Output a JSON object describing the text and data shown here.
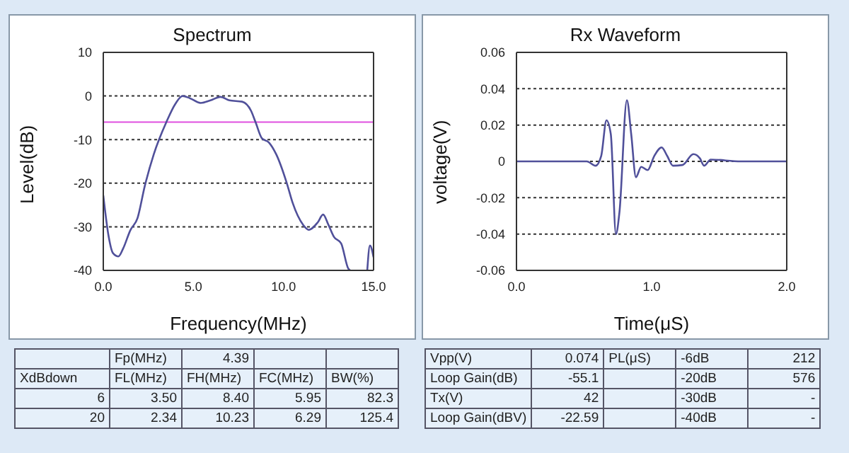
{
  "chart_data": [
    {
      "type": "line",
      "title": "Spectrum",
      "xlabel": "Frequency(MHz)",
      "ylabel": "Level(dB)",
      "grid": "y",
      "marker": "none",
      "line_style": "solid",
      "xlim": [
        0,
        15
      ],
      "xticks": [
        {
          "value": 0,
          "label": "0.0"
        },
        {
          "value": 5,
          "label": "5.0"
        },
        {
          "value": 10,
          "label": "10.0"
        },
        {
          "value": 15,
          "label": "15.0"
        }
      ],
      "ylim": [
        -40,
        10
      ],
      "yticks": [
        -40,
        -30,
        -20,
        -10,
        0,
        10
      ],
      "ref_lines": [
        {
          "axis": "y",
          "value": -6,
          "color": "#e050e0"
        }
      ],
      "series": [
        {
          "color": "#50509a",
          "x": [
            0,
            0.3,
            0.53,
            0.84,
            1.1,
            1.5,
            1.9,
            2.3,
            2.8,
            3.5,
            4.0,
            4.4,
            4.8,
            5.4,
            5.95,
            6.5,
            7.0,
            7.7,
            8.2,
            8.45,
            8.8,
            9.2,
            9.6,
            10.2,
            10.5,
            11.1,
            11.4,
            11.9,
            12.2,
            12.5,
            12.8,
            13.2,
            13.6,
            13.7,
            14.2,
            14.65,
            14.8,
            15
          ],
          "values": [
            -22.8,
            -32.3,
            -36,
            -36.8,
            -35,
            -30.8,
            -28,
            -20.7,
            -13.4,
            -6,
            -1.8,
            0,
            -0.5,
            -1.6,
            -1,
            -0.2,
            -1,
            -1.3,
            -3.4,
            -6,
            -9.7,
            -10.7,
            -13.4,
            -20.2,
            -24.4,
            -29.6,
            -30.7,
            -29,
            -27.2,
            -29.6,
            -32.3,
            -33.8,
            -39.6,
            -40,
            null,
            -40,
            -34.3,
            -37
          ]
        }
      ]
    },
    {
      "type": "line",
      "title": "Rx Waveform",
      "xlabel": "Time(μS)",
      "ylabel": "voltage(V)",
      "grid": "y",
      "marker": "none",
      "line_style": "solid",
      "xlim": [
        0,
        2
      ],
      "xticks": [
        {
          "value": 0,
          "label": "0.0"
        },
        {
          "value": 1,
          "label": "1.0"
        },
        {
          "value": 2,
          "label": "2.0"
        }
      ],
      "ylim": [
        -0.06,
        0.06
      ],
      "yticks": [
        -0.06,
        -0.04,
        -0.02,
        0,
        0.02,
        0.04,
        0.06
      ],
      "series": [
        {
          "color": "#50509a",
          "x": [
            0,
            0.376,
            0.52,
            0.585,
            0.627,
            0.666,
            0.698,
            0.736,
            0.762,
            0.817,
            0.849,
            0.884,
            0.923,
            0.971,
            1.019,
            1.074,
            1.116,
            1.158,
            1.228,
            1.309,
            1.357,
            1.389,
            1.437,
            1.66,
            2.0
          ],
          "values": [
            0,
            0,
            0,
            -0.0024,
            0.003,
            0.0226,
            0.015,
            -0.04,
            -0.028,
            0.0337,
            0.015,
            -0.0087,
            -0.003,
            -0.0048,
            0.0029,
            0.0077,
            0.0029,
            -0.0024,
            -0.002,
            0.004,
            0.0017,
            -0.0024,
            0.001,
            0,
            0
          ]
        }
      ]
    },
    {
      "type": "other",
      "cell_labels": [
        [
          null,
          "Fp(MHz)",
          "4.39",
          null,
          null
        ],
        [
          "XdBdown",
          "FL(MHz)",
          "FH(MHz)",
          "FC(MHz)",
          "BW(%)"
        ],
        [
          "6",
          "3.50",
          "8.40",
          "5.95",
          "82.3"
        ],
        [
          "20",
          "2.34",
          "10.23",
          "6.29",
          "125.4"
        ]
      ]
    },
    {
      "type": "other",
      "cell_labels": [
        [
          "Vpp(V)",
          "0.074",
          "PL(μS)",
          "-6dB",
          "212"
        ],
        [
          "Loop Gain(dB)",
          "-55.1",
          null,
          "-20dB",
          "576"
        ],
        [
          "Tx(V)",
          "42",
          null,
          "-30dB",
          "-"
        ],
        [
          "Loop Gain(dBV)",
          "-22.59",
          null,
          "-40dB",
          "-"
        ]
      ]
    }
  ]
}
